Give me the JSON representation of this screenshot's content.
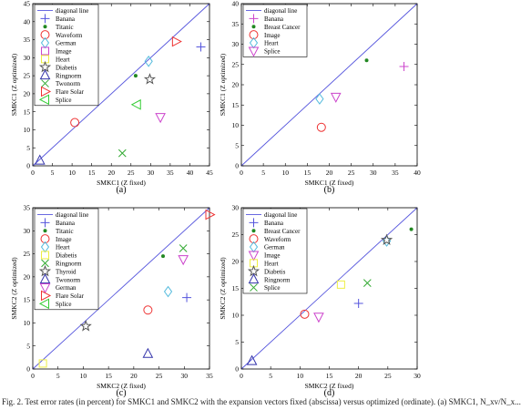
{
  "figure": {
    "caption": "Fig. 2.  Test error rates (in percent) for SMKC1 and SMKC2 with the expansion vectors fixed (abscissa) versus optimized (ordinate). (a) SMKC1, N_xv/N_x..."
  },
  "chart_data": [
    {
      "type": "scatter",
      "panel_label": "(a)",
      "xlabel": "SMKC1 (Z fixed)",
      "ylabel": "SMKC1 (Z optimized)",
      "xlim": [
        0,
        45
      ],
      "ylim": [
        0,
        45
      ],
      "xticks": [
        0,
        5,
        10,
        15,
        20,
        25,
        30,
        35,
        40,
        45
      ],
      "yticks": [
        0,
        5,
        10,
        15,
        20,
        25,
        30,
        35,
        40,
        45
      ],
      "legend_placement": "top-left",
      "diagonal": {
        "name": "diagonal line",
        "color": "#5555dd"
      },
      "series": [
        {
          "name": "Banana",
          "marker": "plus",
          "color": "#5555dd",
          "points": [
            [
              42.8,
              33.0
            ]
          ]
        },
        {
          "name": "Titanic",
          "marker": "dot",
          "color": "#228822",
          "points": [
            [
              26.2,
              25.0
            ]
          ]
        },
        {
          "name": "Waveform",
          "marker": "circle",
          "color": "#ee3333",
          "points": [
            [
              10.7,
              12.0
            ]
          ]
        },
        {
          "name": "German",
          "marker": "diamond",
          "color": "#55bbdd",
          "points": [
            [
              29.5,
              29.0
            ]
          ]
        },
        {
          "name": "Image",
          "marker": "square",
          "color": "#cc44cc",
          "points": []
        },
        {
          "name": "Heart",
          "marker": "square",
          "color": "#eeee44",
          "points": []
        },
        {
          "name": "Diabetis",
          "marker": "star",
          "color": "#555555",
          "points": [
            [
              29.8,
              24.0
            ]
          ]
        },
        {
          "name": "Ringnorm",
          "marker": "triangle-up",
          "color": "#3333aa",
          "points": [
            [
              1.8,
              1.5
            ]
          ]
        },
        {
          "name": "Twonorm",
          "marker": "cross",
          "color": "#33aa33",
          "points": [
            [
              22.8,
              3.5
            ]
          ]
        },
        {
          "name": "Flare Solar",
          "marker": "triangle-right",
          "color": "#ee3333",
          "points": [
            [
              36.5,
              34.5
            ]
          ]
        },
        {
          "name": "Splice",
          "marker": "triangle-left",
          "color": "#33cc33",
          "points": [
            [
              26.5,
              17.0
            ]
          ]
        },
        {
          "name": "",
          "marker": "triangle-down",
          "color": "#cc44cc",
          "points": [
            [
              32.5,
              13.5
            ]
          ]
        }
      ]
    },
    {
      "type": "scatter",
      "panel_label": "(b)",
      "xlabel": "SMKC1 (Z fixed)",
      "ylabel": "SMKC1 (Z optimized)",
      "xlim": [
        0,
        40
      ],
      "ylim": [
        0,
        40
      ],
      "xticks": [
        0,
        5,
        10,
        15,
        20,
        25,
        30,
        35,
        40
      ],
      "yticks": [
        0,
        5,
        10,
        15,
        20,
        25,
        30,
        35,
        40
      ],
      "legend_placement": "top-left",
      "diagonal": {
        "name": "diagonal line",
        "color": "#5555dd"
      },
      "series": [
        {
          "name": "Banana",
          "marker": "plus",
          "color": "#cc44cc",
          "points": [
            [
              37.0,
              24.5
            ]
          ]
        },
        {
          "name": "Breast Cancer",
          "marker": "dot",
          "color": "#228822",
          "points": [
            [
              28.5,
              26.0
            ]
          ]
        },
        {
          "name": "Image",
          "marker": "circle",
          "color": "#ee3333",
          "points": [
            [
              18.2,
              9.5
            ]
          ]
        },
        {
          "name": "Heart",
          "marker": "diamond",
          "color": "#55bbdd",
          "points": [
            [
              17.8,
              16.5
            ]
          ]
        },
        {
          "name": "Splice",
          "marker": "triangle-down",
          "color": "#cc44cc",
          "points": [
            [
              21.5,
              17.0
            ]
          ]
        }
      ]
    },
    {
      "type": "scatter",
      "panel_label": "(c)",
      "xlabel": "SMKC2 (Z fixed)",
      "ylabel": "SMKC2 (Z optimized)",
      "xlim": [
        0,
        35
      ],
      "ylim": [
        0,
        35
      ],
      "xticks": [
        0,
        5,
        10,
        15,
        20,
        25,
        30,
        35
      ],
      "yticks": [
        0,
        5,
        10,
        15,
        20,
        25,
        30,
        35
      ],
      "legend_placement": "top-left",
      "diagonal": {
        "name": "diagonal line",
        "color": "#5555dd"
      },
      "series": [
        {
          "name": "Banana",
          "marker": "plus",
          "color": "#5555dd",
          "points": [
            [
              30.5,
              15.5
            ]
          ]
        },
        {
          "name": "Titanic",
          "marker": "dot",
          "color": "#228822",
          "points": [
            [
              25.8,
              24.5
            ]
          ]
        },
        {
          "name": "Image",
          "marker": "circle",
          "color": "#ee3333",
          "points": [
            [
              22.8,
              12.8
            ]
          ]
        },
        {
          "name": "Heart",
          "marker": "diamond",
          "color": "#55bbdd",
          "points": [
            [
              26.8,
              16.8
            ]
          ]
        },
        {
          "name": "Diabetis",
          "marker": "square",
          "color": "#eeee44",
          "points": [
            [
              2.0,
              1.2
            ]
          ]
        },
        {
          "name": "Ringnorm",
          "marker": "cross",
          "color": "#33aa33",
          "points": [
            [
              29.8,
              26.2
            ]
          ]
        },
        {
          "name": "Thyroid",
          "marker": "star",
          "color": "#555555",
          "points": [
            [
              10.5,
              9.3
            ]
          ]
        },
        {
          "name": "Twonorm",
          "marker": "triangle-up",
          "color": "#3333aa",
          "points": [
            [
              22.8,
              3.3
            ]
          ]
        },
        {
          "name": "German",
          "marker": "triangle-down",
          "color": "#cc44cc",
          "points": [
            [
              29.8,
              23.8
            ]
          ]
        },
        {
          "name": "Flare Solar",
          "marker": "triangle-right",
          "color": "#ee3333",
          "points": [
            [
              35.0,
              33.5
            ]
          ]
        },
        {
          "name": "Splice",
          "marker": "triangle-left",
          "color": "#33cc33",
          "points": []
        }
      ]
    },
    {
      "type": "scatter",
      "panel_label": "(d)",
      "xlabel": "SMKC2 (Z fixed)",
      "ylabel": "SMKC2 (Z optimized)",
      "xlim": [
        0,
        30
      ],
      "ylim": [
        0,
        30
      ],
      "xticks": [
        0,
        5,
        10,
        15,
        20,
        25,
        30
      ],
      "yticks": [
        0,
        5,
        10,
        15,
        20,
        25,
        30
      ],
      "legend_placement": "top-left",
      "diagonal": {
        "name": "diagonal line",
        "color": "#5555dd"
      },
      "series": [
        {
          "name": "Banana",
          "marker": "plus",
          "color": "#5555dd",
          "points": [
            [
              20.0,
              12.2
            ]
          ]
        },
        {
          "name": "Breast Cancer",
          "marker": "dot",
          "color": "#228822",
          "points": [
            [
              29.0,
              26.0
            ]
          ]
        },
        {
          "name": "Waveform",
          "marker": "circle",
          "color": "#ee3333",
          "points": [
            [
              10.8,
              10.2
            ]
          ]
        },
        {
          "name": "German",
          "marker": "diamond",
          "color": "#55bbdd",
          "points": [
            [
              24.8,
              23.8
            ]
          ]
        },
        {
          "name": "Image",
          "marker": "triangle-down",
          "color": "#cc44cc",
          "points": [
            [
              13.2,
              9.7
            ]
          ]
        },
        {
          "name": "Heart",
          "marker": "square",
          "color": "#eeee44",
          "points": [
            [
              17.0,
              15.7
            ]
          ]
        },
        {
          "name": "Diabetis",
          "marker": "star",
          "color": "#555555",
          "points": [
            [
              24.8,
              24.0
            ]
          ]
        },
        {
          "name": "Ringnorm",
          "marker": "triangle-up",
          "color": "#3333aa",
          "points": [
            [
              1.8,
              1.5
            ]
          ]
        },
        {
          "name": "Splice",
          "marker": "cross",
          "color": "#33aa33",
          "points": [
            [
              21.5,
              16.0
            ]
          ]
        }
      ]
    }
  ]
}
